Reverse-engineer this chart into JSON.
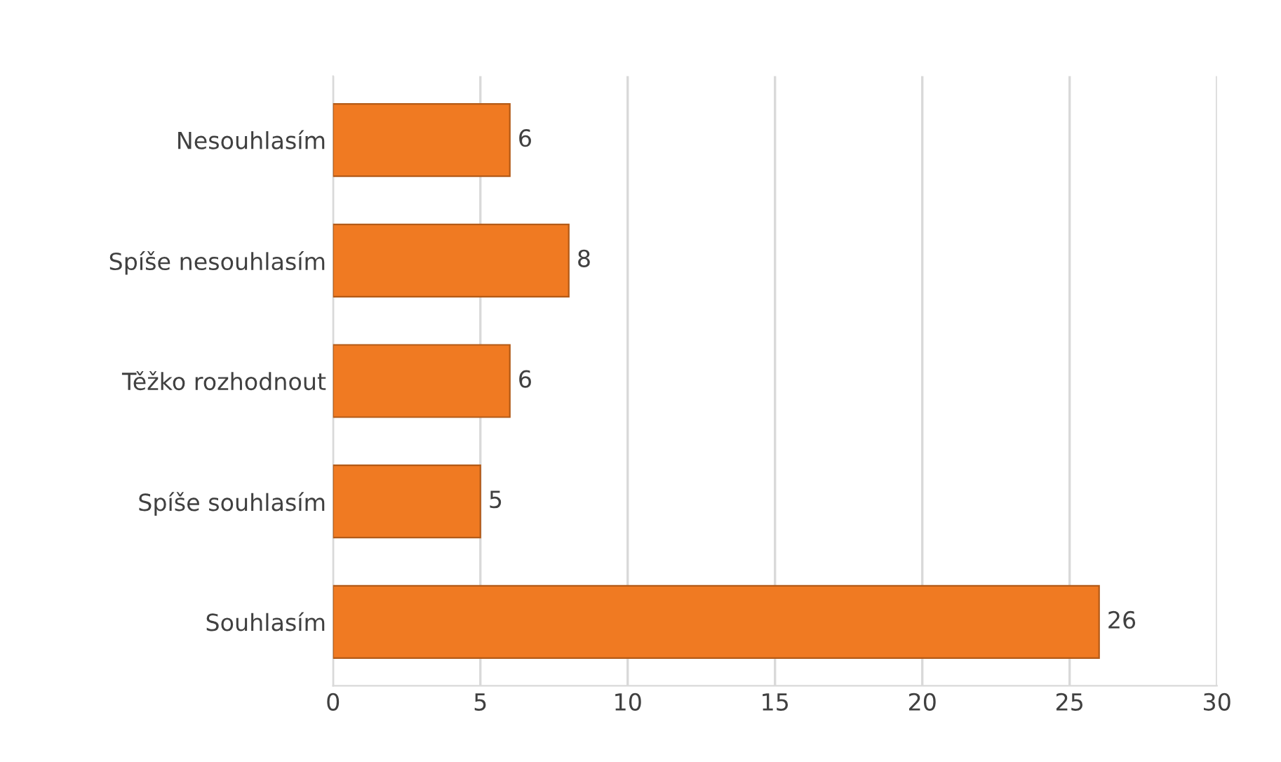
{
  "chart_data": {
    "type": "bar",
    "orientation": "horizontal",
    "categories": [
      "Nesouhlasím",
      "Spíše nesouhlasím",
      "Těžko rozhodnout",
      "Spíše souhlasím",
      "Souhlasím"
    ],
    "values": [
      6,
      8,
      6,
      5,
      26
    ],
    "color": "#f07a22",
    "xlim": [
      0,
      30
    ],
    "xticks": [
      0,
      5,
      10,
      15,
      20,
      25,
      30
    ],
    "grid": "x",
    "data_labels": true
  }
}
